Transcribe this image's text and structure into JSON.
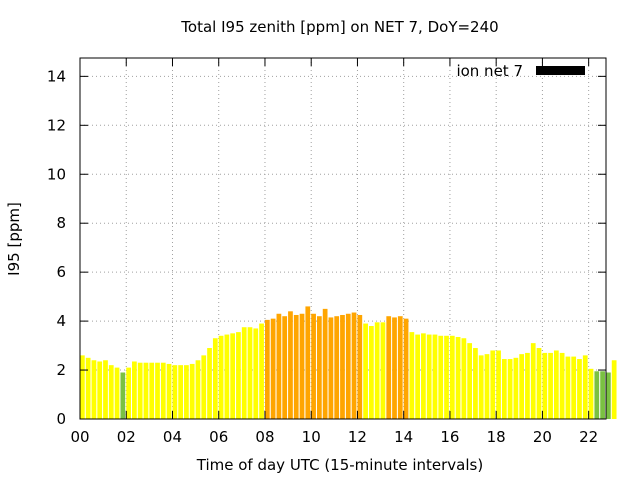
{
  "chart_data": {
    "type": "bar",
    "title": "Total I95 zenith [ppm] on NET 7, DoY=240",
    "xlabel": "Time of day UTC (15-minute intervals)",
    "ylabel": "I95 [ppm]",
    "xlim": [
      0,
      22.75
    ],
    "ylim": [
      0,
      14.75
    ],
    "xticks": [
      "00",
      "02",
      "04",
      "06",
      "08",
      "10",
      "12",
      "14",
      "16",
      "18",
      "20",
      "22"
    ],
    "yticks": [
      "0",
      "2",
      "4",
      "6",
      "8",
      "10",
      "12",
      "14"
    ],
    "grid": true,
    "legend": {
      "position": "top-right",
      "label": "ion net 7",
      "color": "#000000"
    },
    "bar_interval_hours": 0.25,
    "color_thresholds": [
      {
        "max": 2.0,
        "color": "#7ac142"
      },
      {
        "max": 4.0,
        "color": "#ffff00"
      },
      {
        "max": 99,
        "color": "#ffa500"
      }
    ],
    "values": [
      2.6,
      2.5,
      2.4,
      2.35,
      2.4,
      2.2,
      2.1,
      1.9,
      2.1,
      2.35,
      2.3,
      2.3,
      2.3,
      2.3,
      2.3,
      2.25,
      2.2,
      2.2,
      2.2,
      2.25,
      2.4,
      2.6,
      2.9,
      3.3,
      3.4,
      3.45,
      3.5,
      3.55,
      3.75,
      3.75,
      3.7,
      3.9,
      4.05,
      4.1,
      4.3,
      4.2,
      4.4,
      4.25,
      4.3,
      4.6,
      4.3,
      4.2,
      4.5,
      4.15,
      4.2,
      4.25,
      4.3,
      4.35,
      4.25,
      3.9,
      3.8,
      3.95,
      3.95,
      4.2,
      4.15,
      4.2,
      4.1,
      3.55,
      3.45,
      3.5,
      3.45,
      3.45,
      3.4,
      3.4,
      3.4,
      3.35,
      3.3,
      3.1,
      2.9,
      2.6,
      2.65,
      2.8,
      2.8,
      2.45,
      2.45,
      2.5,
      2.65,
      2.7,
      3.1,
      2.9,
      2.7,
      2.7,
      2.8,
      2.7,
      2.55,
      2.55,
      2.45,
      2.6,
      2.05,
      1.95,
      1.95,
      1.9,
      2.4
    ]
  }
}
